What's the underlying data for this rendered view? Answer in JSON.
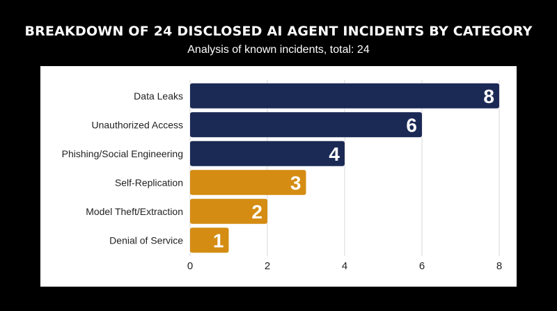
{
  "chart_data": {
    "type": "bar",
    "orientation": "horizontal",
    "title": "BREAKDOWN OF 24 DISCLOSED AI AGENT INCIDENTS BY CATEGORY",
    "subtitle": "Analysis of known incidents, total: 24",
    "categories": [
      "Data Leaks",
      "Unauthorized Access",
      "Phishing/Social Engineering",
      "Self-Replication",
      "Model Theft/Extraction",
      "Denial of Service"
    ],
    "values": [
      8,
      6,
      4,
      3,
      2,
      1
    ],
    "value_labels": [
      "8",
      "6",
      "4",
      "3",
      "2",
      "1"
    ],
    "bar_colors": [
      "#1b2a55",
      "#1b2a55",
      "#1b2a55",
      "#d48c12",
      "#d48c12",
      "#d48c12"
    ],
    "xlim": [
      0,
      8
    ],
    "xticks": [
      0,
      2,
      4,
      6,
      8
    ],
    "xtick_labels": [
      "0",
      "2",
      "4",
      "6",
      "8"
    ],
    "grid": "vertical",
    "legend": "none"
  },
  "colors": {
    "background": "#000000",
    "panel": "#ffffff",
    "navy": "#1b2a55",
    "gold": "#d48c12",
    "grid": "#d9d9d9"
  }
}
